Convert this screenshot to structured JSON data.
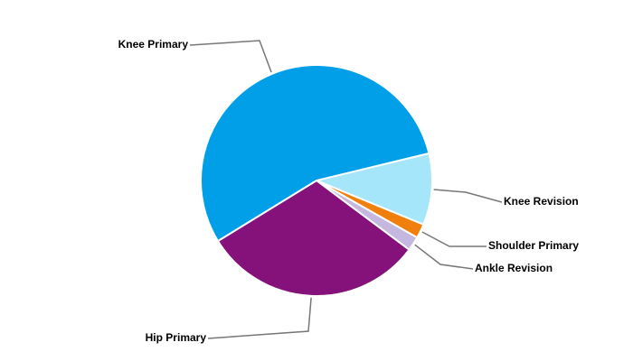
{
  "chart_data": {
    "type": "pie",
    "categories": [
      "Knee Revision",
      "Shoulder Primary",
      "Ankle Revision",
      "Hip Primary",
      "Knee Primary"
    ],
    "values": [
      10,
      2,
      2,
      31,
      55
    ],
    "colors": [
      "#a6e6fb",
      "#f07f0e",
      "#c5b8e0",
      "#85117a",
      "#009fe8"
    ]
  }
}
